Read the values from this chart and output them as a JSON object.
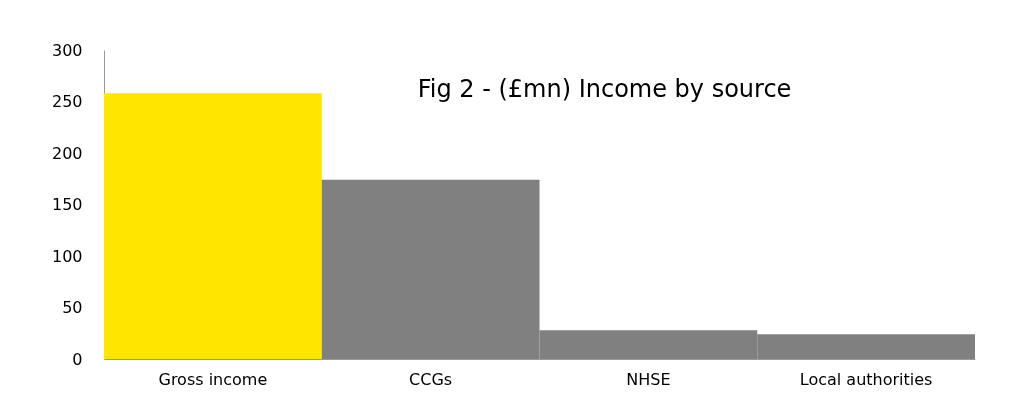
{
  "chart_data": {
    "type": "bar",
    "title": "Fig 2 - (£mn) Income by source",
    "categories": [
      "Gross income",
      "CCGs",
      "NHSE",
      "Local authorities"
    ],
    "values": [
      258,
      174,
      28,
      24
    ],
    "colors": [
      "#ffe600",
      "#808080",
      "#808080",
      "#808080"
    ],
    "ylim": [
      0,
      300
    ],
    "yticks": [
      0,
      50,
      100,
      150,
      200,
      250,
      300
    ],
    "grid": false
  }
}
